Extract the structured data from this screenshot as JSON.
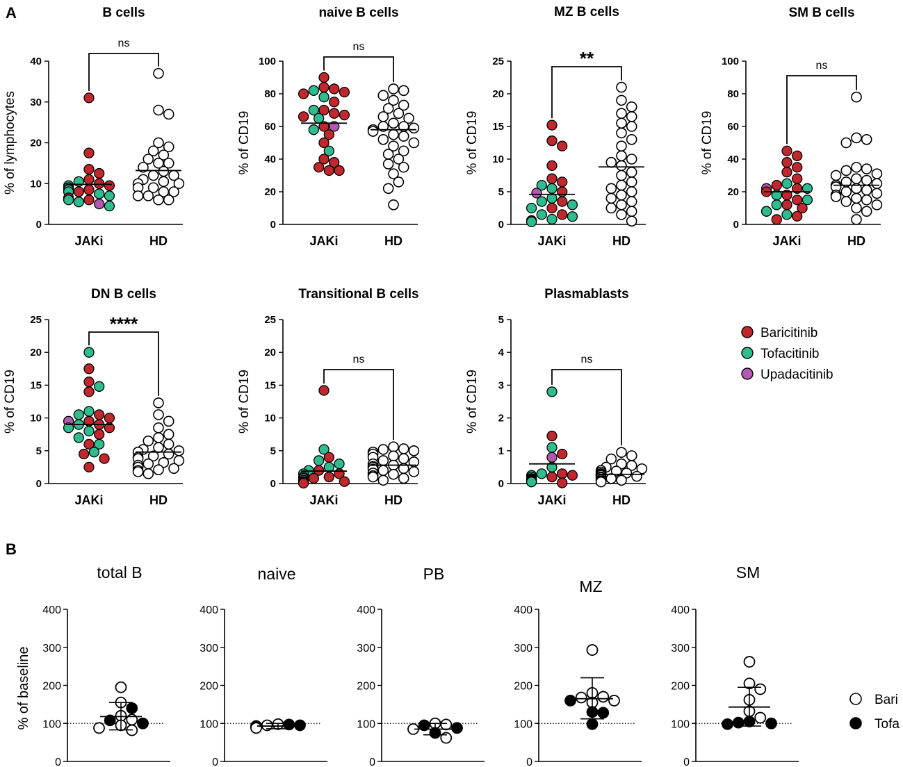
{
  "figure": {
    "panel_a_label": "A",
    "panel_b_label": "B",
    "legend_a": [
      {
        "label": "Baricitinib",
        "color": "#c0282d"
      },
      {
        "label": "Tofacitinib",
        "color": "#2fbc8f"
      },
      {
        "label": "Upadacitinib",
        "color": "#b558b0"
      }
    ],
    "legend_b": [
      {
        "label": "Bari",
        "fill": "#ffffff"
      },
      {
        "label": "Tofa",
        "fill": "#000000"
      }
    ]
  },
  "chart_data": [
    {
      "type": "scatter",
      "panel": "A",
      "title": "B cells",
      "ylabel": "% of lymphocytes",
      "ylim": [
        0,
        40
      ],
      "yticks": [
        0,
        10,
        20,
        30,
        40
      ],
      "categories": [
        "JAKi",
        "HD"
      ],
      "significance": "ns",
      "means": [
        9.8,
        13.2
      ],
      "series": [
        {
          "name": "Baricitinib",
          "values": [
            31,
            17.5,
            13.5,
            12.5,
            11,
            10,
            9.5,
            8.5,
            8,
            6.5,
            6
          ]
        },
        {
          "name": "Tofacitinib",
          "values": [
            10.5,
            9.5,
            9,
            8.5,
            8,
            7.5,
            7,
            6,
            5.5,
            4.5
          ]
        },
        {
          "name": "Upadacitinib",
          "values": [
            5
          ]
        },
        {
          "name": "HD",
          "values": [
            37,
            28,
            27,
            20,
            19,
            18,
            17,
            16,
            15,
            15,
            14,
            13,
            12,
            12,
            11,
            10.5,
            10,
            10,
            9,
            9,
            8,
            8,
            7,
            7,
            6,
            6
          ]
        }
      ]
    },
    {
      "type": "scatter",
      "panel": "A",
      "title": "naive B cells",
      "ylabel": "% of CD19",
      "ylim": [
        0,
        100
      ],
      "yticks": [
        0,
        20,
        40,
        60,
        80,
        100
      ],
      "categories": [
        "JAKi",
        "HD"
      ],
      "significance": "ns",
      "means": [
        62,
        58
      ],
      "series": [
        {
          "name": "Baricitinib",
          "values": [
            90,
            84,
            83,
            81,
            80,
            75,
            70,
            68,
            67,
            66,
            60,
            55,
            50,
            40,
            38,
            35,
            33,
            33
          ]
        },
        {
          "name": "Tofacitinib",
          "values": [
            82,
            78,
            70,
            65,
            58,
            45
          ]
        },
        {
          "name": "Upadacitinib",
          "values": [
            60
          ]
        },
        {
          "name": "HD",
          "values": [
            83,
            82,
            79,
            76,
            73,
            71,
            68,
            66,
            65,
            62,
            60,
            60,
            59,
            58,
            57,
            55,
            54,
            52,
            50,
            48,
            45,
            43,
            40,
            37,
            35,
            31,
            26,
            22,
            12
          ]
        }
      ]
    },
    {
      "type": "scatter",
      "panel": "A",
      "title": "MZ B cells",
      "ylabel": "% of CD19",
      "ylim": [
        0,
        25
      ],
      "yticks": [
        0,
        5,
        10,
        15,
        20,
        25
      ],
      "categories": [
        "JAKi",
        "HD"
      ],
      "significance": "**",
      "means": [
        4.6,
        8.8
      ],
      "series": [
        {
          "name": "Baricitinib",
          "values": [
            15.2,
            12.8,
            12,
            9,
            7,
            6.5,
            5,
            3.5,
            2.5,
            1.5,
            0.6,
            0.5
          ]
        },
        {
          "name": "Tofacitinib",
          "values": [
            6,
            5.5,
            4,
            3.5,
            3,
            2.5,
            1.5,
            1.2,
            0.8,
            0.4
          ]
        },
        {
          "name": "Upadacitinib",
          "values": [
            4.8
          ]
        },
        {
          "name": "HD",
          "values": [
            21,
            19,
            18,
            17,
            16.5,
            15.5,
            15,
            14,
            13,
            12,
            10.5,
            10,
            9.5,
            9,
            8,
            7.5,
            6.5,
            6,
            5.5,
            5,
            4.5,
            4,
            3.5,
            3,
            2.5,
            2,
            1.5,
            0.5
          ]
        }
      ]
    },
    {
      "type": "scatter",
      "panel": "A",
      "title": "SM B cells",
      "ylabel": "% of CD19",
      "ylim": [
        0,
        100
      ],
      "yticks": [
        0,
        20,
        40,
        60,
        80,
        100
      ],
      "categories": [
        "JAKi",
        "HD"
      ],
      "significance": "ns",
      "means": [
        20,
        24
      ],
      "series": [
        {
          "name": "Baricitinib",
          "values": [
            45,
            42,
            38,
            35,
            32,
            28,
            24,
            22,
            20,
            18,
            15,
            12,
            10,
            8,
            5,
            3
          ]
        },
        {
          "name": "Tofacitinib",
          "values": [
            25,
            22,
            18,
            15,
            12,
            8,
            6
          ]
        },
        {
          "name": "Upadacitinib",
          "values": [
            22
          ]
        },
        {
          "name": "HD",
          "values": [
            78,
            53,
            52,
            50,
            35,
            34,
            33,
            31,
            30,
            28,
            27,
            26,
            25,
            24,
            23,
            22,
            21,
            20,
            19,
            18,
            17,
            16,
            15,
            14,
            12,
            10,
            8,
            3
          ]
        }
      ]
    },
    {
      "type": "scatter",
      "panel": "A",
      "title": "DN B cells",
      "ylabel": "% of CD19",
      "ylim": [
        0,
        25
      ],
      "yticks": [
        0,
        5,
        10,
        15,
        20,
        25
      ],
      "categories": [
        "JAKi",
        "HD"
      ],
      "significance": "****",
      "means": [
        9.0,
        4.8
      ],
      "series": [
        {
          "name": "Baricitinib",
          "values": [
            17.5,
            15.5,
            14,
            10.5,
            10,
            9.5,
            9,
            8.5,
            7.5,
            6,
            4.5,
            3.8,
            2.5
          ]
        },
        {
          "name": "Tofacitinib",
          "values": [
            20,
            14.8,
            11,
            10.5,
            9,
            8.5,
            8,
            7,
            6,
            4.8
          ]
        },
        {
          "name": "Upadacitinib",
          "values": [
            9.5
          ]
        },
        {
          "name": "HD",
          "values": [
            12.3,
            10.5,
            9.5,
            8.5,
            7.5,
            7,
            6.5,
            6,
            5.5,
            5.2,
            5,
            4.8,
            4.5,
            4.2,
            4,
            3.8,
            3.5,
            3.2,
            3,
            2.8,
            2.5,
            2.3,
            2.1,
            2,
            1.8,
            1.5
          ]
        }
      ]
    },
    {
      "type": "scatter",
      "panel": "A",
      "title": "Transitional B cells",
      "ylabel": "% of CD19",
      "ylim": [
        0,
        25
      ],
      "yticks": [
        0,
        5,
        10,
        15,
        20,
        25
      ],
      "categories": [
        "JAKi",
        "HD"
      ],
      "significance": "ns",
      "means": [
        1.9,
        2.8
      ],
      "series": [
        {
          "name": "Baricitinib",
          "values": [
            14.2,
            4,
            2,
            1.5,
            1,
            0.8,
            0.5,
            0.3,
            0.2,
            0.1,
            0.05
          ]
        },
        {
          "name": "Tofacitinib",
          "values": [
            5.2,
            3.5,
            3,
            2.5,
            2,
            1.5,
            1,
            0.5,
            0.3,
            0.2,
            0.1
          ]
        },
        {
          "name": "Upadacitinib",
          "values": [
            0.8
          ]
        },
        {
          "name": "HD",
          "values": [
            5.6,
            5.3,
            5.2,
            5,
            4.8,
            4.5,
            4.2,
            4,
            3.8,
            3.5,
            3.3,
            3,
            2.8,
            2.6,
            2.5,
            2.3,
            2.2,
            2,
            1.8,
            1.6,
            1.4,
            1.2,
            1,
            0.8,
            0.5
          ]
        }
      ]
    },
    {
      "type": "scatter",
      "panel": "A",
      "title": "Plasmablasts",
      "ylabel": "% of CD19",
      "ylim": [
        0,
        5
      ],
      "yticks": [
        0,
        1,
        2,
        3,
        4,
        5
      ],
      "categories": [
        "JAKi",
        "HD"
      ],
      "significance": "ns",
      "means": [
        0.6,
        0.28
      ],
      "series": [
        {
          "name": "Baricitinib",
          "values": [
            1.45,
            0.9,
            0.3,
            0.25,
            0.2,
            0.15,
            0.12,
            0.1,
            0.08,
            0.05,
            0.02
          ]
        },
        {
          "name": "Tofacitinib",
          "values": [
            2.8,
            1.1,
            0.5,
            0.3,
            0.25,
            0.2,
            0.15,
            0.1,
            0.05
          ]
        },
        {
          "name": "Upadacitinib",
          "values": [
            0.8
          ]
        },
        {
          "name": "HD",
          "values": [
            0.95,
            0.85,
            0.75,
            0.6,
            0.55,
            0.5,
            0.45,
            0.4,
            0.38,
            0.35,
            0.32,
            0.3,
            0.28,
            0.26,
            0.25,
            0.22,
            0.2,
            0.18,
            0.15,
            0.12,
            0.1,
            0.08,
            0.05
          ]
        }
      ]
    },
    {
      "type": "scatter",
      "panel": "B",
      "title": "total B",
      "ylabel": "% of baseline",
      "ylim": [
        0,
        400
      ],
      "yticks": [
        0,
        100,
        200,
        300,
        400
      ],
      "baseline": 100,
      "mean": 118,
      "sd": [
        83,
        155
      ],
      "series": [
        {
          "name": "Bari",
          "values": [
            195,
            155,
            120,
            110,
            95,
            88,
            82
          ]
        },
        {
          "name": "Tofa",
          "values": [
            140,
            108,
            100
          ]
        }
      ]
    },
    {
      "type": "scatter",
      "panel": "B",
      "title": "naive",
      "ylabel": "",
      "ylim": [
        0,
        400
      ],
      "yticks": [
        0,
        100,
        200,
        300,
        400
      ],
      "baseline": 100,
      "mean": 93,
      "sd": [
        86,
        100
      ],
      "series": [
        {
          "name": "Bari",
          "values": [
            98,
            95,
            92,
            90,
            88
          ]
        },
        {
          "name": "Tofa",
          "values": [
            97,
            95,
            93
          ]
        }
      ]
    },
    {
      "type": "scatter",
      "panel": "B",
      "title": "PB",
      "ylabel": "",
      "ylim": [
        0,
        400
      ],
      "yticks": [
        0,
        100,
        200,
        300,
        400
      ],
      "baseline": 100,
      "mean": 85,
      "sd": [
        70,
        100
      ],
      "series": [
        {
          "name": "Bari",
          "values": [
            100,
            97,
            85,
            62
          ]
        },
        {
          "name": "Tofa",
          "values": [
            95,
            88,
            75
          ]
        }
      ]
    },
    {
      "type": "scatter",
      "panel": "B",
      "title": "MZ",
      "ylabel": "",
      "ylim": [
        0,
        400
      ],
      "yticks": [
        0,
        100,
        200,
        300,
        400
      ],
      "baseline": 100,
      "mean": 165,
      "sd": [
        112,
        220
      ],
      "series": [
        {
          "name": "Bari",
          "values": [
            293,
            180,
            170,
            168,
            160,
            155
          ]
        },
        {
          "name": "Tofa",
          "values": [
            160,
            130,
            128,
            98
          ]
        }
      ]
    },
    {
      "type": "scatter",
      "panel": "B",
      "title": "SM",
      "ylabel": "",
      "ylim": [
        0,
        400
      ],
      "yticks": [
        0,
        100,
        200,
        300,
        400
      ],
      "baseline": 100,
      "mean": 143,
      "sd": [
        93,
        195
      ],
      "series": [
        {
          "name": "Bari",
          "values": [
            262,
            205,
            190,
            162,
            132,
            115
          ]
        },
        {
          "name": "Tofa",
          "values": [
            105,
            102,
            100,
            98
          ]
        }
      ]
    }
  ]
}
